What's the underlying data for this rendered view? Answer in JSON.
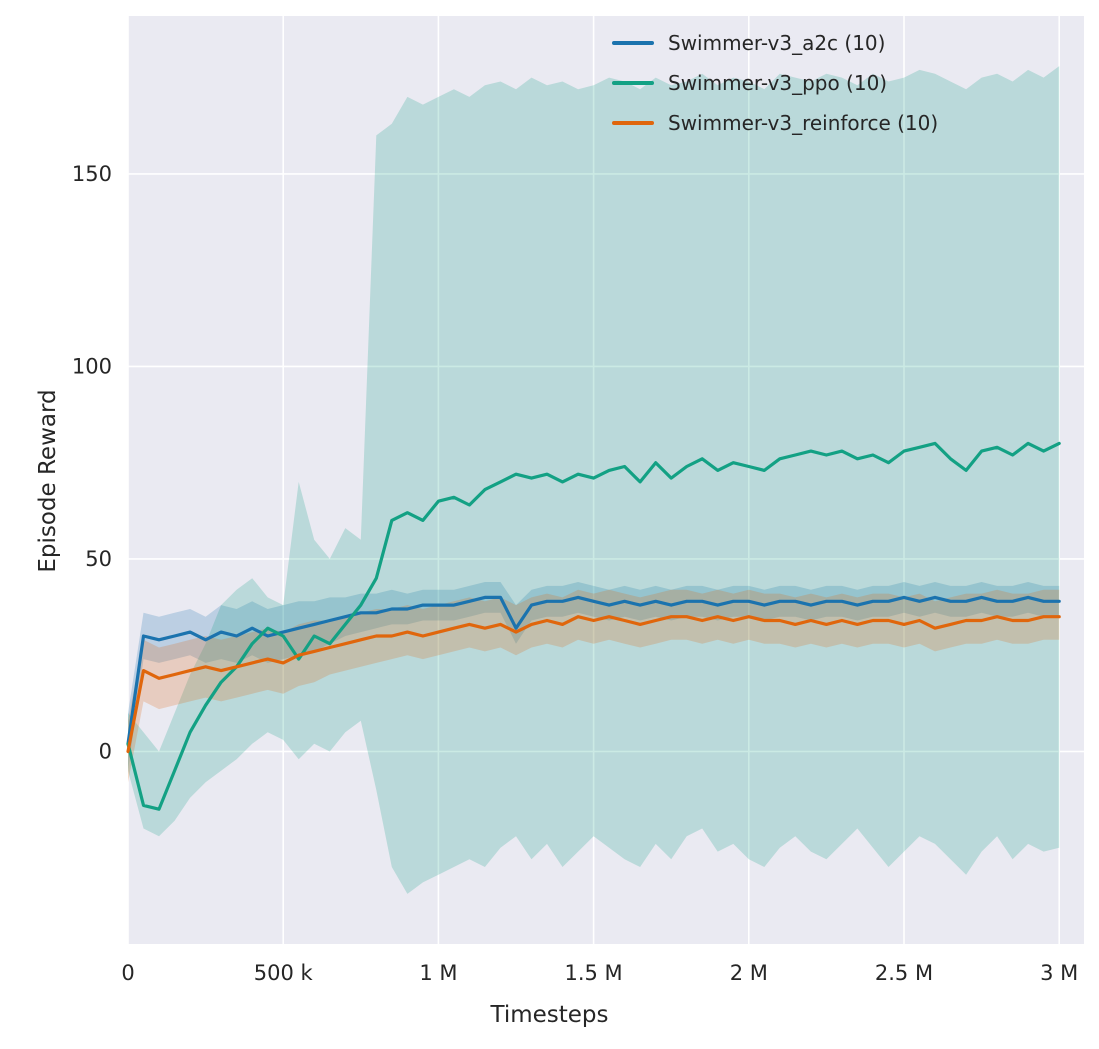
{
  "chart_data": {
    "type": "line",
    "title": "",
    "xlabel": "Timesteps",
    "ylabel": "Episode Reward",
    "x_unit": "thousand timesteps",
    "xlim": [
      0,
      3000
    ],
    "ylim": [
      -50,
      191
    ],
    "grid": true,
    "legend_position": "upper center inside plot",
    "plot_bg_color": "#eaeaf2",
    "grid_color": "#ffffff",
    "xticks": {
      "values": [
        0,
        500,
        1000,
        1500,
        2000,
        2500,
        3000
      ],
      "labels": [
        "0",
        "500 k",
        "1 M",
        "1.5 M",
        "2 M",
        "2.5 M",
        "3 M"
      ]
    },
    "yticks": {
      "values": [
        0,
        50,
        100,
        150
      ],
      "labels": [
        "0",
        "50",
        "100",
        "150"
      ]
    },
    "x": [
      0,
      50,
      100,
      150,
      200,
      250,
      300,
      350,
      400,
      450,
      500,
      550,
      600,
      650,
      700,
      750,
      800,
      850,
      900,
      950,
      1000,
      1050,
      1100,
      1150,
      1200,
      1250,
      1300,
      1350,
      1400,
      1450,
      1500,
      1550,
      1600,
      1650,
      1700,
      1750,
      1800,
      1850,
      1900,
      1950,
      2000,
      2050,
      2100,
      2150,
      2200,
      2250,
      2300,
      2350,
      2400,
      2450,
      2500,
      2550,
      2600,
      2650,
      2700,
      2750,
      2800,
      2850,
      2900,
      2950,
      3000
    ],
    "series": [
      {
        "name": "Swimmer-v3_a2c (10)",
        "color": "#1b73ae",
        "mean": [
          2,
          30,
          29,
          30,
          31,
          29,
          31,
          30,
          32,
          30,
          31,
          32,
          33,
          34,
          35,
          36,
          36,
          37,
          37,
          38,
          38,
          38,
          39,
          40,
          40,
          32,
          38,
          39,
          39,
          40,
          39,
          38,
          39,
          38,
          39,
          38,
          39,
          39,
          38,
          39,
          39,
          38,
          39,
          39,
          38,
          39,
          39,
          38,
          39,
          39,
          40,
          39,
          40,
          39,
          39,
          40,
          39,
          39,
          40,
          39,
          39
        ],
        "low": [
          -5,
          24,
          23,
          24,
          25,
          23,
          24,
          23,
          25,
          23,
          24,
          25,
          26,
          28,
          30,
          31,
          32,
          33,
          33,
          34,
          34,
          34,
          35,
          36,
          36,
          28,
          34,
          35,
          35,
          36,
          35,
          34,
          35,
          34,
          35,
          34,
          35,
          35,
          34,
          35,
          35,
          34,
          35,
          35,
          34,
          35,
          35,
          34,
          35,
          35,
          36,
          35,
          36,
          35,
          35,
          36,
          35,
          35,
          36,
          35,
          35
        ],
        "high": [
          10,
          36,
          35,
          36,
          37,
          35,
          38,
          37,
          39,
          37,
          38,
          39,
          39,
          40,
          40,
          41,
          41,
          42,
          41,
          42,
          42,
          42,
          43,
          44,
          44,
          38,
          42,
          43,
          43,
          44,
          43,
          42,
          43,
          42,
          43,
          42,
          43,
          43,
          42,
          43,
          43,
          42,
          43,
          43,
          42,
          43,
          43,
          42,
          43,
          43,
          44,
          43,
          44,
          43,
          43,
          44,
          43,
          43,
          44,
          43,
          43
        ]
      },
      {
        "name": "Swimmer-v3_ppo (10)",
        "color": "#13a184",
        "mean": [
          2,
          -14,
          -15,
          -5,
          5,
          12,
          18,
          22,
          28,
          32,
          30,
          24,
          30,
          28,
          33,
          38,
          45,
          60,
          62,
          60,
          65,
          66,
          64,
          68,
          70,
          72,
          71,
          72,
          70,
          72,
          71,
          73,
          74,
          70,
          75,
          71,
          74,
          76,
          73,
          75,
          74,
          73,
          76,
          77,
          78,
          77,
          78,
          76,
          77,
          75,
          78,
          79,
          80,
          76,
          73,
          78,
          79,
          77,
          80,
          78,
          80
        ],
        "low": [
          -5,
          -20,
          -22,
          -18,
          -12,
          -8,
          -5,
          -2,
          2,
          5,
          3,
          -2,
          2,
          0,
          5,
          8,
          -10,
          -30,
          -37,
          -34,
          -32,
          -30,
          -28,
          -30,
          -25,
          -22,
          -28,
          -24,
          -30,
          -26,
          -22,
          -25,
          -28,
          -30,
          -24,
          -28,
          -22,
          -20,
          -26,
          -24,
          -28,
          -30,
          -25,
          -22,
          -26,
          -28,
          -24,
          -20,
          -25,
          -30,
          -26,
          -22,
          -24,
          -28,
          -32,
          -26,
          -22,
          -28,
          -24,
          -26,
          -25
        ],
        "high": [
          10,
          5,
          0,
          10,
          20,
          28,
          38,
          42,
          45,
          40,
          38,
          70,
          55,
          50,
          58,
          55,
          160,
          163,
          170,
          168,
          170,
          172,
          170,
          173,
          174,
          172,
          175,
          173,
          174,
          172,
          173,
          175,
          174,
          172,
          175,
          173,
          174,
          176,
          173,
          175,
          174,
          172,
          176,
          175,
          174,
          176,
          175,
          173,
          176,
          174,
          175,
          177,
          176,
          174,
          172,
          175,
          176,
          174,
          177,
          175,
          178
        ]
      },
      {
        "name": "Swimmer-v3_reinforce (10)",
        "color": "#e0660c",
        "mean": [
          0,
          21,
          19,
          20,
          21,
          22,
          21,
          22,
          23,
          24,
          23,
          25,
          26,
          27,
          28,
          29,
          30,
          30,
          31,
          30,
          31,
          32,
          33,
          32,
          33,
          31,
          33,
          34,
          33,
          35,
          34,
          35,
          34,
          33,
          34,
          35,
          35,
          34,
          35,
          34,
          35,
          34,
          34,
          33,
          34,
          33,
          34,
          33,
          34,
          34,
          33,
          34,
          32,
          33,
          34,
          34,
          35,
          34,
          34,
          35,
          35
        ],
        "low": [
          -8,
          13,
          11,
          12,
          13,
          14,
          13,
          14,
          15,
          16,
          15,
          17,
          18,
          20,
          21,
          22,
          23,
          24,
          25,
          24,
          25,
          26,
          27,
          26,
          27,
          25,
          27,
          28,
          27,
          29,
          28,
          29,
          28,
          27,
          28,
          29,
          29,
          28,
          29,
          28,
          29,
          28,
          28,
          27,
          28,
          27,
          28,
          27,
          28,
          28,
          27,
          28,
          26,
          27,
          28,
          28,
          29,
          28,
          28,
          29,
          29
        ],
        "high": [
          8,
          29,
          27,
          28,
          29,
          30,
          29,
          30,
          31,
          32,
          31,
          33,
          34,
          34,
          35,
          36,
          37,
          37,
          38,
          37,
          38,
          39,
          40,
          39,
          40,
          38,
          40,
          41,
          40,
          42,
          41,
          42,
          41,
          40,
          41,
          42,
          42,
          41,
          42,
          41,
          42,
          41,
          41,
          40,
          41,
          40,
          41,
          40,
          41,
          41,
          40,
          41,
          39,
          40,
          41,
          41,
          42,
          41,
          41,
          42,
          42
        ]
      }
    ],
    "band_alpha": 0.22
  }
}
